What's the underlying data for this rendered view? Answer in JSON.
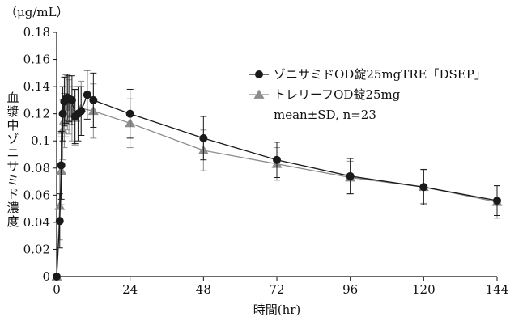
{
  "chart_data": {
    "type": "line",
    "unit_label": "（μg/mL）",
    "ylabel": "血漿中ゾニサミド濃度",
    "xlabel": "時間(hr)",
    "xlim": [
      0,
      144
    ],
    "ylim": [
      0,
      0.18
    ],
    "x_ticks": [
      0,
      24,
      48,
      72,
      96,
      120,
      144
    ],
    "y_ticks": [
      0,
      0.02,
      0.04,
      0.06,
      0.08,
      0.1,
      0.12,
      0.14,
      0.16,
      0.18
    ],
    "y_tick_labels": [
      "0",
      "0.02",
      "0.04",
      "0.06",
      "0.08",
      "0.1",
      "0.12",
      "0.14",
      "0.16",
      "0.18"
    ],
    "grid": false,
    "legend_position": "top-right",
    "series": [
      {
        "name": "ゾニサミドOD錠25mgTRE「DSEP」",
        "marker": "circle",
        "color": "#1a1a1a",
        "points": [
          {
            "x": 0,
            "y": 0,
            "err": 0
          },
          {
            "x": 1,
            "y": 0.041,
            "err": 0.02
          },
          {
            "x": 1.5,
            "y": 0.082,
            "err": 0.025
          },
          {
            "x": 2,
            "y": 0.12,
            "err": 0.02
          },
          {
            "x": 2.5,
            "y": 0.129,
            "err": 0.018
          },
          {
            "x": 3,
            "y": 0.131,
            "err": 0.018
          },
          {
            "x": 3.5,
            "y": 0.132,
            "err": 0.017
          },
          {
            "x": 4,
            "y": 0.131,
            "err": 0.017
          },
          {
            "x": 5,
            "y": 0.13,
            "err": 0.018
          },
          {
            "x": 6,
            "y": 0.118,
            "err": 0.02
          },
          {
            "x": 7,
            "y": 0.12,
            "err": 0.02
          },
          {
            "x": 8,
            "y": 0.122,
            "err": 0.018
          },
          {
            "x": 10,
            "y": 0.134,
            "err": 0.018
          },
          {
            "x": 12,
            "y": 0.13,
            "err": 0.02
          },
          {
            "x": 24,
            "y": 0.12,
            "err": 0.018
          },
          {
            "x": 48,
            "y": 0.102,
            "err": 0.016
          },
          {
            "x": 72,
            "y": 0.086,
            "err": 0.013
          },
          {
            "x": 96,
            "y": 0.074,
            "err": 0.013
          },
          {
            "x": 120,
            "y": 0.066,
            "err": 0.013
          },
          {
            "x": 144,
            "y": 0.056,
            "err": 0.011
          }
        ]
      },
      {
        "name": "トレリーフOD錠25mg",
        "marker": "triangle",
        "color": "#8c8c8c",
        "points": [
          {
            "x": 0,
            "y": 0,
            "err": 0
          },
          {
            "x": 1,
            "y": 0.052,
            "err": 0.025
          },
          {
            "x": 1.5,
            "y": 0.078,
            "err": 0.025
          },
          {
            "x": 2,
            "y": 0.108,
            "err": 0.022
          },
          {
            "x": 2.5,
            "y": 0.115,
            "err": 0.02
          },
          {
            "x": 3,
            "y": 0.125,
            "err": 0.022
          },
          {
            "x": 3.5,
            "y": 0.128,
            "err": 0.02
          },
          {
            "x": 4,
            "y": 0.125,
            "err": 0.02
          },
          {
            "x": 5,
            "y": 0.12,
            "err": 0.02
          },
          {
            "x": 6,
            "y": 0.117,
            "err": 0.02
          },
          {
            "x": 8,
            "y": 0.124,
            "err": 0.02
          },
          {
            "x": 12,
            "y": 0.122,
            "err": 0.02
          },
          {
            "x": 24,
            "y": 0.113,
            "err": 0.018
          },
          {
            "x": 48,
            "y": 0.093,
            "err": 0.015
          },
          {
            "x": 72,
            "y": 0.083,
            "err": 0.012
          },
          {
            "x": 96,
            "y": 0.073,
            "err": 0.012
          },
          {
            "x": 120,
            "y": 0.066,
            "err": 0.012
          },
          {
            "x": 144,
            "y": 0.055,
            "err": 0.012
          }
        ]
      }
    ],
    "annotation": "mean±SD, n=23"
  }
}
